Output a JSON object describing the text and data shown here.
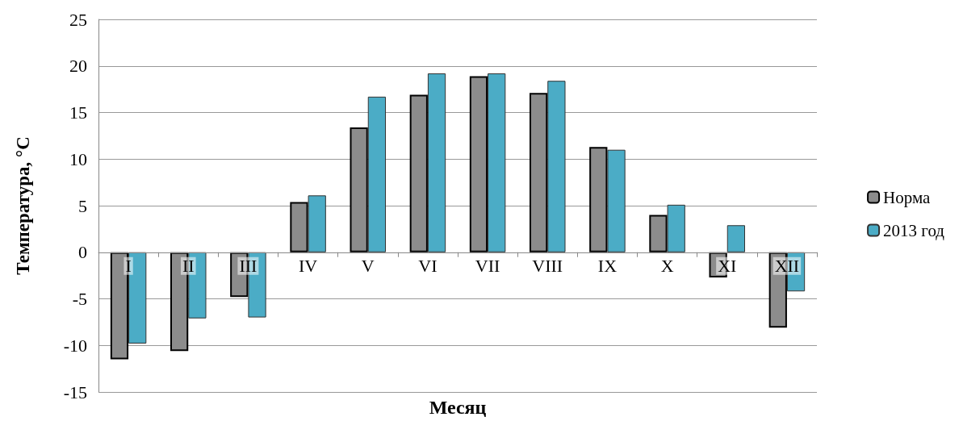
{
  "chart_data": {
    "type": "bar",
    "xlabel": "Месяц",
    "ylabel": "Температура, °C",
    "categories": [
      "I",
      "II",
      "III",
      "IV",
      "V",
      "VI",
      "VII",
      "VIII",
      "IX",
      "X",
      "XI",
      "XII"
    ],
    "series": [
      {
        "name": "Норма",
        "color": "#8c8c8c",
        "values": [
          -11.5,
          -10.6,
          -4.8,
          5.4,
          13.4,
          16.9,
          18.9,
          17.1,
          11.3,
          4.0,
          -2.7,
          -8.1
        ]
      },
      {
        "name": "2013 год",
        "color": "#4bacc6",
        "values": [
          -9.8,
          -7.1,
          -7.0,
          6.1,
          16.7,
          19.2,
          19.2,
          18.4,
          11.0,
          5.1,
          2.9,
          -4.2
        ]
      }
    ],
    "ylim": [
      -15,
      25
    ],
    "yticks": [
      -15,
      -10,
      -5,
      0,
      5,
      10,
      15,
      20,
      25
    ],
    "grid": "y",
    "legend": "right"
  }
}
